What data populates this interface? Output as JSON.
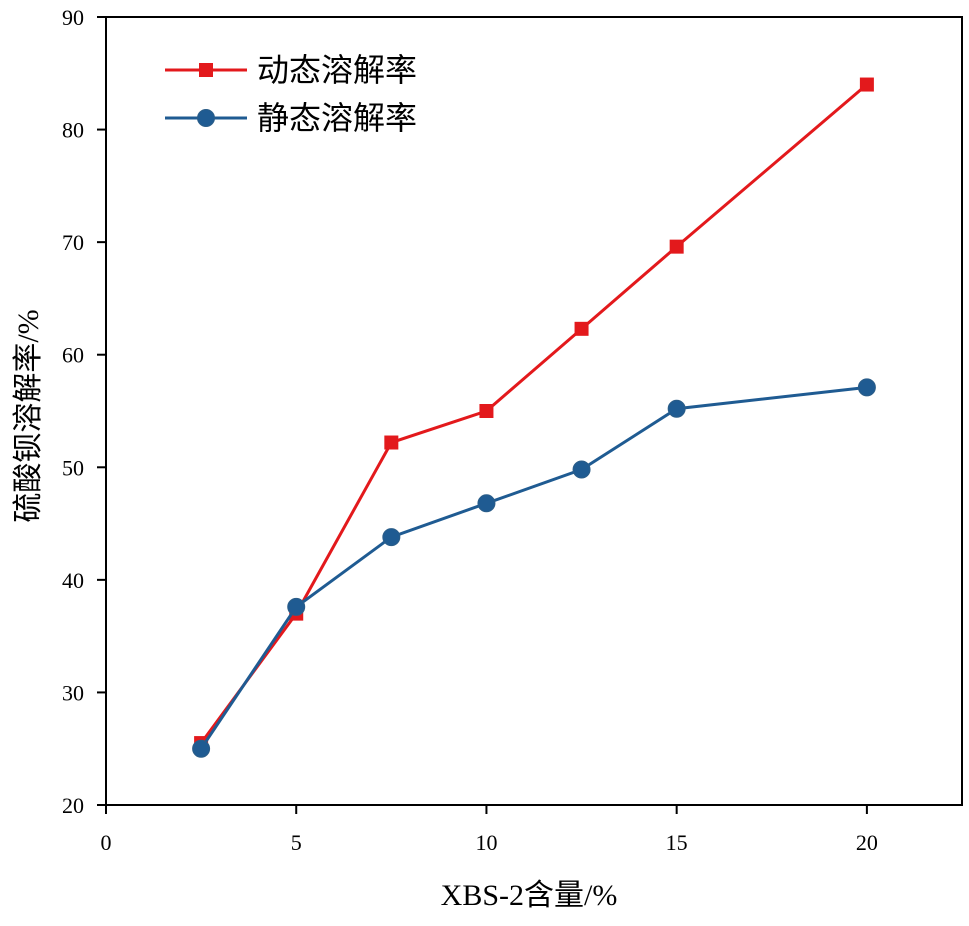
{
  "chart_data": {
    "type": "line",
    "xlabel": "XBS-2含量/%",
    "ylabel": "硫酸钡溶解率/%",
    "xlim": [
      0,
      22.5
    ],
    "ylim": [
      20,
      90
    ],
    "xticks": [
      0,
      5,
      10,
      15,
      20
    ],
    "yticks": [
      20,
      30,
      40,
      50,
      60,
      70,
      80,
      90
    ],
    "legend_position": "top-left",
    "grid": false,
    "series": [
      {
        "name": "动态溶解率",
        "color": "#e3191c",
        "marker": "square",
        "x": [
          2.5,
          5,
          7.5,
          10,
          12.5,
          15,
          20
        ],
        "y": [
          25.5,
          37.0,
          52.2,
          55.0,
          62.3,
          69.6,
          84.0
        ]
      },
      {
        "name": "静态溶解率",
        "color": "#1f5b92",
        "marker": "circle",
        "x": [
          2.5,
          5,
          7.5,
          10,
          12.5,
          15,
          20
        ],
        "y": [
          25.0,
          37.6,
          43.8,
          46.8,
          49.8,
          55.2,
          57.1
        ]
      }
    ]
  }
}
